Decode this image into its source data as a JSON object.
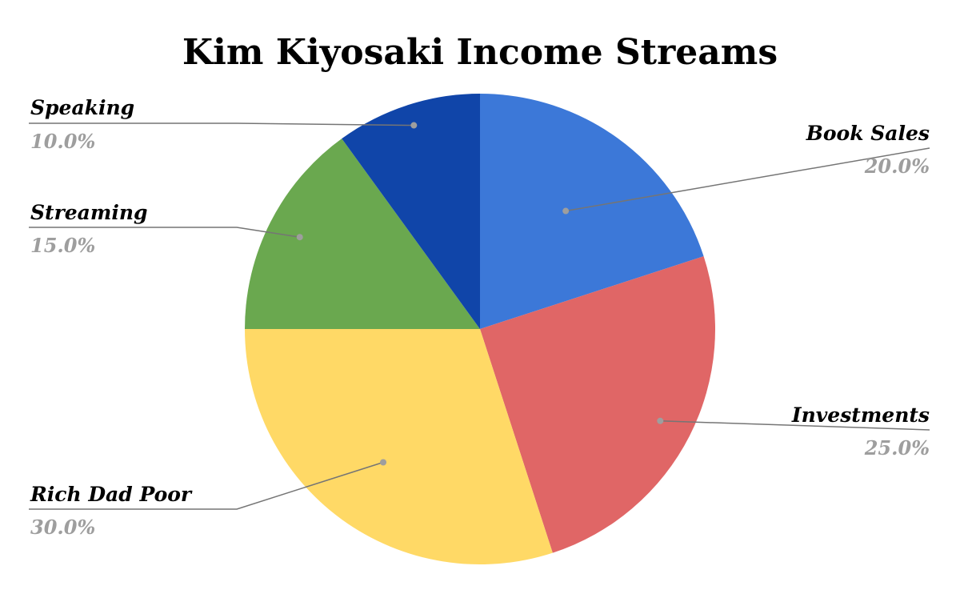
{
  "chart_data": {
    "type": "pie",
    "title": "Kim Kiyosaki Income Streams",
    "slices": [
      {
        "label": "Book Sales",
        "value": 20.0,
        "value_label": "20.0%",
        "color": "#3c78d8"
      },
      {
        "label": "Investments",
        "value": 25.0,
        "value_label": "25.0%",
        "color": "#e06666"
      },
      {
        "label": "Rich Dad Poor",
        "value": 30.0,
        "value_label": "30.0%",
        "color": "#ffd966"
      },
      {
        "label": "Streaming",
        "value": 15.0,
        "value_label": "15.0%",
        "color": "#6aa84f"
      },
      {
        "label": "Speaking",
        "value": 10.0,
        "value_label": "10.0%",
        "color": "#1045a9"
      }
    ],
    "start_angle": "12 o'clock",
    "direction": "clockwise",
    "legend": "none",
    "label_style": "outside labels with leader lines"
  }
}
